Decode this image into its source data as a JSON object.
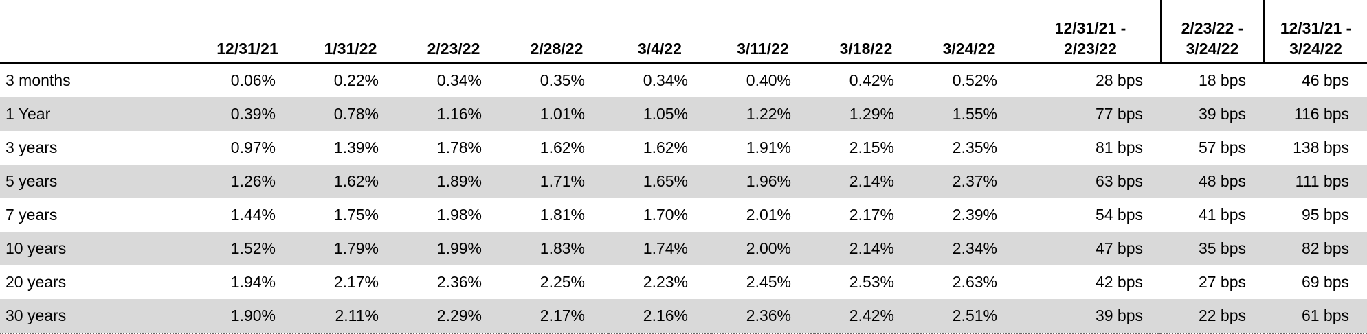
{
  "table": {
    "columns": [
      "12/31/21",
      "1/31/22",
      "2/23/22",
      "2/28/22",
      "3/4/22",
      "3/11/22",
      "3/18/22",
      "3/24/22",
      [
        "12/31/21 -",
        "2/23/22"
      ],
      [
        "2/23/22 -",
        "3/24/22"
      ],
      [
        "12/31/21 -",
        "3/24/22"
      ]
    ],
    "rows": [
      [
        "3 months",
        "0.06%",
        "0.22%",
        "0.34%",
        "0.35%",
        "0.34%",
        "0.40%",
        "0.42%",
        "0.52%",
        "28 bps",
        "18 bps",
        "46 bps"
      ],
      [
        "1 Year",
        "0.39%",
        "0.78%",
        "1.16%",
        "1.01%",
        "1.05%",
        "1.22%",
        "1.29%",
        "1.55%",
        "77 bps",
        "39 bps",
        "116 bps"
      ],
      [
        "3 years",
        "0.97%",
        "1.39%",
        "1.78%",
        "1.62%",
        "1.62%",
        "1.91%",
        "2.15%",
        "2.35%",
        "81 bps",
        "57 bps",
        "138 bps"
      ],
      [
        "5 years",
        "1.26%",
        "1.62%",
        "1.89%",
        "1.71%",
        "1.65%",
        "1.96%",
        "2.14%",
        "2.37%",
        "63 bps",
        "48 bps",
        "111 bps"
      ],
      [
        "7 years",
        "1.44%",
        "1.75%",
        "1.98%",
        "1.81%",
        "1.70%",
        "2.01%",
        "2.17%",
        "2.39%",
        "54 bps",
        "41 bps",
        "95 bps"
      ],
      [
        "10 years",
        "1.52%",
        "1.79%",
        "1.99%",
        "1.83%",
        "1.74%",
        "2.00%",
        "2.14%",
        "2.34%",
        "47 bps",
        "35 bps",
        "82 bps"
      ],
      [
        "20 years",
        "1.94%",
        "2.17%",
        "2.36%",
        "2.25%",
        "2.23%",
        "2.45%",
        "2.53%",
        "2.63%",
        "42 bps",
        "27 bps",
        "69 bps"
      ],
      [
        "30 years",
        "1.90%",
        "2.11%",
        "2.29%",
        "2.17%",
        "2.16%",
        "2.36%",
        "2.42%",
        "2.51%",
        "39 bps",
        "22 bps",
        "61 bps"
      ]
    ]
  }
}
